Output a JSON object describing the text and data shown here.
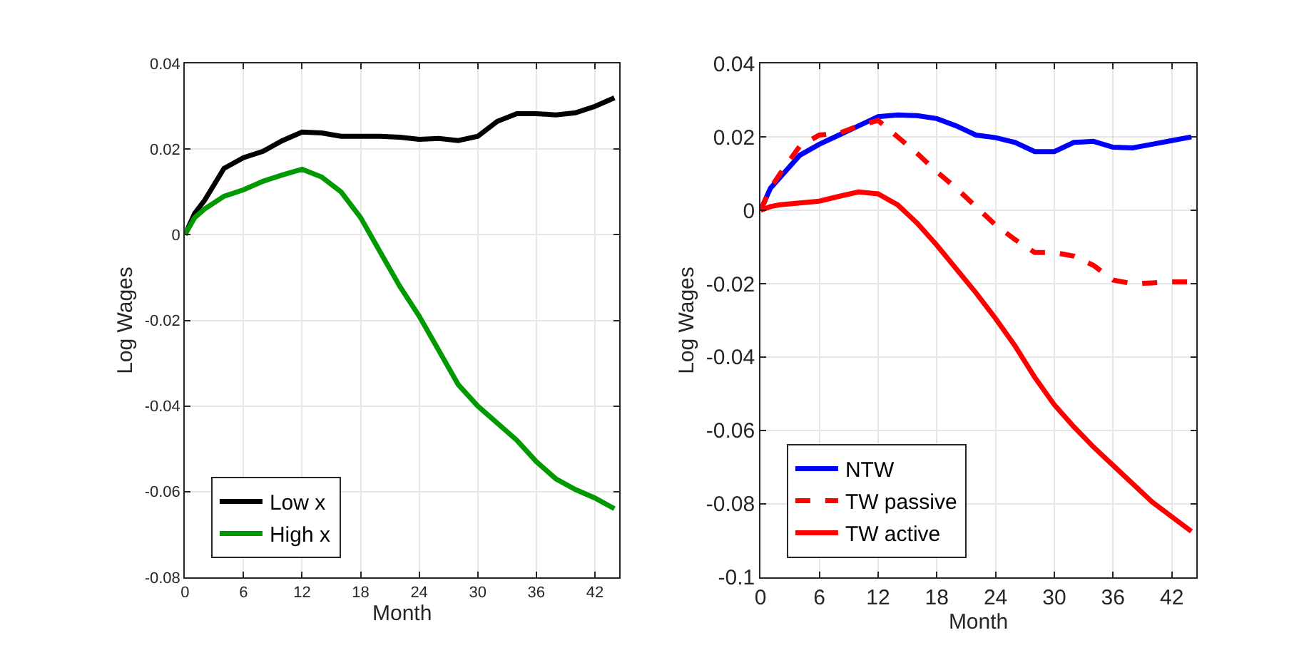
{
  "chart_data": [
    {
      "type": "line",
      "xlabel": "Month",
      "ylabel": "Log Wages",
      "xlim": [
        0,
        44.5
      ],
      "xticks": [
        0,
        6,
        12,
        18,
        24,
        30,
        36,
        42
      ],
      "ylim": [
        -0.08,
        0.04
      ],
      "yticks": [
        {
          "value": -0.08,
          "label": "-0.08"
        },
        {
          "value": -0.06,
          "label": "-0.06"
        },
        {
          "value": -0.04,
          "label": "-0.04"
        },
        {
          "value": -0.02,
          "label": "-0.02"
        },
        {
          "value": 0,
          "label": "0"
        },
        {
          "value": 0.02,
          "label": "0.02"
        },
        {
          "value": 0.04,
          "label": "0.04"
        }
      ],
      "grid": true,
      "legend": "bottom left",
      "x": [
        0,
        1,
        2,
        4,
        6,
        8,
        10,
        12,
        14,
        16,
        18,
        20,
        22,
        24,
        26,
        28,
        30,
        32,
        34,
        36,
        38,
        40,
        42,
        44
      ],
      "series": [
        {
          "name": "Low x",
          "color": "#000000",
          "line_style": "solid",
          "values": [
            0,
            0.005,
            0.008,
            0.0155,
            0.018,
            0.0195,
            0.022,
            0.024,
            0.0238,
            0.023,
            0.023,
            0.023,
            0.0228,
            0.0223,
            0.0225,
            0.022,
            0.023,
            0.0265,
            0.0283,
            0.0283,
            0.028,
            0.0285,
            0.03,
            0.032
          ]
        },
        {
          "name": "High x",
          "color": "#009900",
          "line_style": "solid",
          "values": [
            0,
            0.004,
            0.006,
            0.009,
            0.0105,
            0.0125,
            0.014,
            0.0153,
            0.0135,
            0.01,
            0.004,
            -0.004,
            -0.012,
            -0.019,
            -0.027,
            -0.035,
            -0.04,
            -0.044,
            -0.048,
            -0.053,
            -0.057,
            -0.0595,
            -0.0615,
            -0.064
          ]
        }
      ]
    },
    {
      "type": "line",
      "xlabel": "Month",
      "ylabel": "Log Wages",
      "xlim": [
        0,
        44.5
      ],
      "xticks": [
        0,
        6,
        12,
        18,
        24,
        30,
        36,
        42
      ],
      "ylim": [
        -0.1,
        0.04
      ],
      "yticks": [
        {
          "value": -0.1,
          "label": "-0.1"
        },
        {
          "value": -0.08,
          "label": "-0.08"
        },
        {
          "value": -0.06,
          "label": "-0.06"
        },
        {
          "value": -0.04,
          "label": "-0.04"
        },
        {
          "value": -0.02,
          "label": "-0.02"
        },
        {
          "value": 0,
          "label": "0"
        },
        {
          "value": 0.02,
          "label": "0.02"
        },
        {
          "value": 0.04,
          "label": "0.04"
        }
      ],
      "grid": true,
      "legend": "bottom left",
      "x": [
        0,
        1,
        2,
        4,
        6,
        8,
        10,
        12,
        14,
        16,
        18,
        20,
        22,
        24,
        26,
        28,
        30,
        32,
        34,
        36,
        38,
        40,
        42,
        44
      ],
      "series": [
        {
          "name": "NTW",
          "color": "#0000ff",
          "line_style": "solid",
          "values": [
            0,
            0.006,
            0.009,
            0.015,
            0.018,
            0.0205,
            0.023,
            0.0255,
            0.026,
            0.0258,
            0.025,
            0.023,
            0.0205,
            0.0198,
            0.0185,
            0.016,
            0.016,
            0.0185,
            0.0188,
            0.0172,
            0.017,
            0.018,
            0.019,
            0.02
          ]
        },
        {
          "name": "TW passive",
          "color": "#ff0000",
          "line_style": "dashed",
          "values": [
            0,
            0.006,
            0.01,
            0.0175,
            0.0205,
            0.021,
            0.023,
            0.0245,
            0.02,
            0.0155,
            0.0105,
            0.006,
            0.001,
            -0.004,
            -0.008,
            -0.0115,
            -0.0115,
            -0.0125,
            -0.015,
            -0.019,
            -0.02,
            -0.0198,
            -0.0195,
            -0.0195
          ]
        },
        {
          "name": "TW active",
          "color": "#ff0000",
          "line_style": "solid",
          "values": [
            0,
            0.001,
            0.0015,
            0.002,
            0.0025,
            0.0038,
            0.005,
            0.0045,
            0.0015,
            -0.0035,
            -0.0095,
            -0.016,
            -0.0225,
            -0.0295,
            -0.037,
            -0.0455,
            -0.053,
            -0.059,
            -0.0645,
            -0.0695,
            -0.0745,
            -0.0795,
            -0.0835,
            -0.0875
          ]
        }
      ]
    }
  ]
}
